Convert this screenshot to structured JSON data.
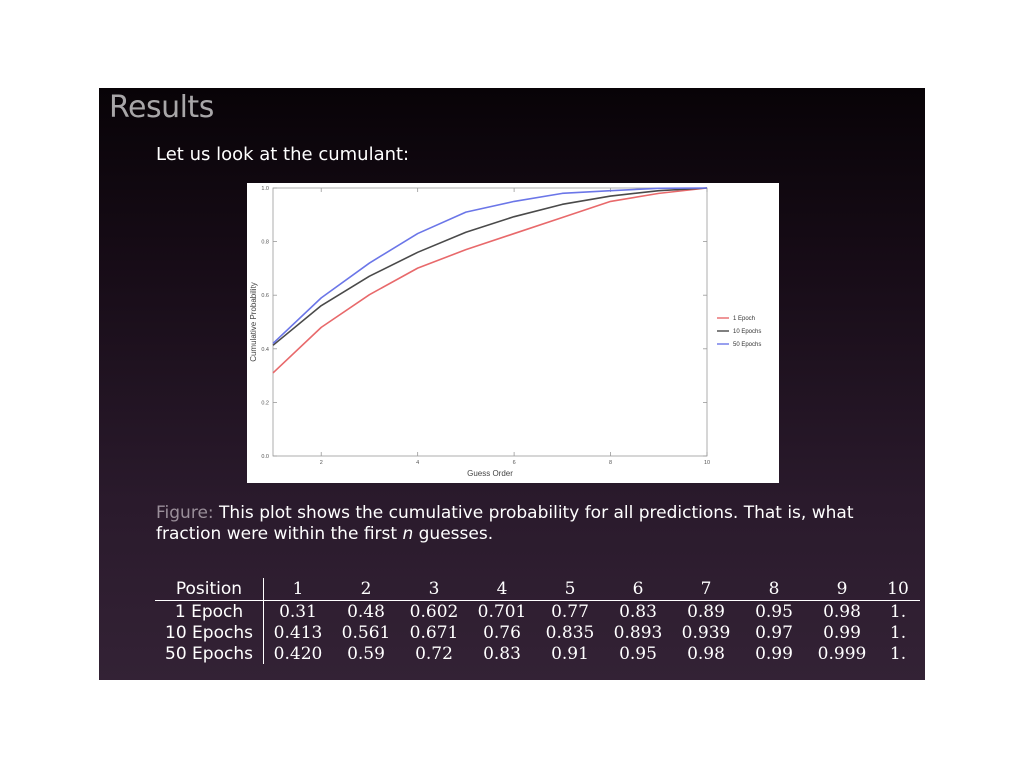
{
  "slide": {
    "title": "Results",
    "intro": "Let us look at the cumulant:",
    "caption": {
      "label": "Figure:",
      "text_part1": "This plot shows the cumulative probability for all predictions. That is, what fraction were within the first",
      "italic": "n",
      "text_part2": "guesses."
    }
  },
  "chart_data": {
    "type": "line",
    "title": "",
    "xlabel": "Guess Order",
    "ylabel": "Cumulative Probability",
    "xlim": [
      1,
      10
    ],
    "ylim": [
      0,
      1
    ],
    "xticks": [
      "2",
      "4",
      "6",
      "8",
      "10"
    ],
    "yticks": [
      "0.0",
      "0.2",
      "0.4",
      "0.6",
      "0.8",
      "1.0"
    ],
    "x": [
      1,
      2,
      3,
      4,
      5,
      6,
      7,
      8,
      9,
      10
    ],
    "legend_position": "right",
    "grid": false,
    "series": [
      {
        "name": "1 Epoch",
        "color": "#e8696b",
        "values": [
          0.31,
          0.48,
          0.602,
          0.701,
          0.77,
          0.83,
          0.89,
          0.95,
          0.98,
          1.0
        ]
      },
      {
        "name": "10 Epochs",
        "color": "#4a4a4a",
        "values": [
          0.413,
          0.561,
          0.671,
          0.76,
          0.835,
          0.893,
          0.939,
          0.97,
          0.99,
          1.0
        ]
      },
      {
        "name": "50 Epochs",
        "color": "#6b76e8",
        "values": [
          0.42,
          0.59,
          0.72,
          0.83,
          0.91,
          0.95,
          0.98,
          0.99,
          0.999,
          1.0
        ]
      }
    ]
  },
  "table": {
    "header_label": "Position",
    "positions": [
      "1",
      "2",
      "3",
      "4",
      "5",
      "6",
      "7",
      "8",
      "9",
      "10"
    ],
    "rows": [
      {
        "label": "1 Epoch",
        "values": [
          "0.31",
          "0.48",
          "0.602",
          "0.701",
          "0.77",
          "0.83",
          "0.89",
          "0.95",
          "0.98",
          "1."
        ]
      },
      {
        "label": "10 Epochs",
        "values": [
          "0.413",
          "0.561",
          "0.671",
          "0.76",
          "0.835",
          "0.893",
          "0.939",
          "0.97",
          "0.99",
          "1."
        ]
      },
      {
        "label": "50 Epochs",
        "values": [
          "0.420",
          "0.59",
          "0.72",
          "0.83",
          "0.91",
          "0.95",
          "0.98",
          "0.99",
          "0.999",
          "1."
        ]
      }
    ]
  }
}
